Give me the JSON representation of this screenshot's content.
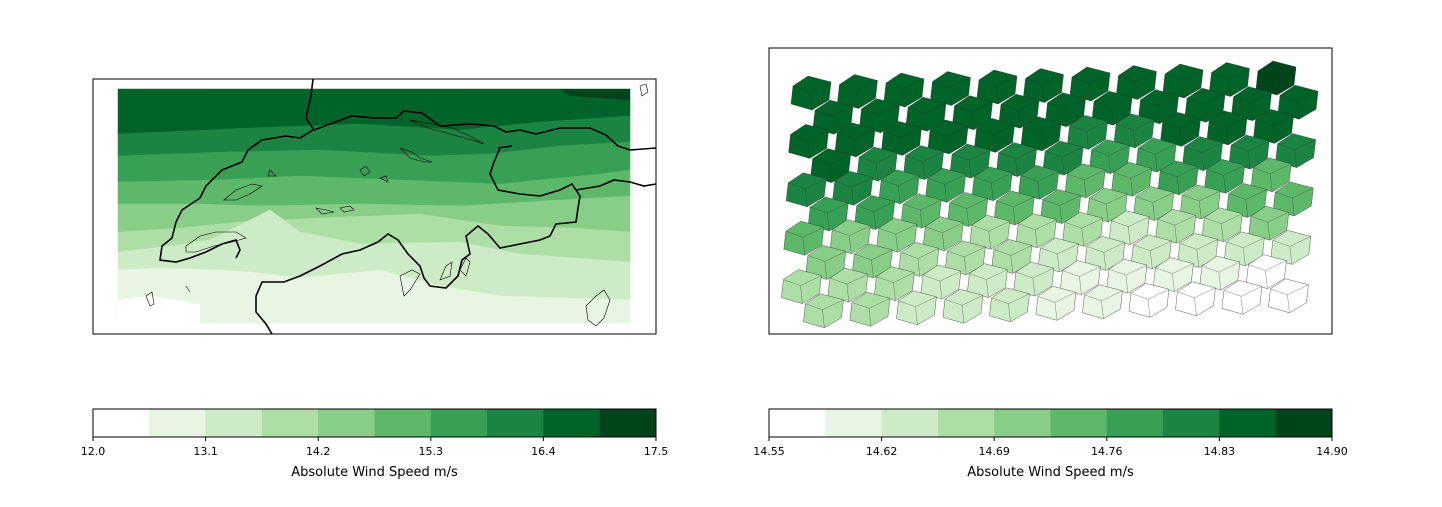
{
  "chart_data": [
    {
      "type": "heatmap",
      "title": "",
      "xlabel": "",
      "ylabel": "",
      "grid": false,
      "description_data": "banded wind speed field over a regional map with country outlines and lakes",
      "colorbar": {
        "label": "Absolute Wind Speed m/s",
        "min": 12.0,
        "max": 17.5,
        "levels": 10,
        "ticks": [
          "12.0",
          "13.1",
          "14.2",
          "15.3",
          "16.4",
          "17.5"
        ],
        "colors": [
          "#ffffff",
          "#e8f5e2",
          "#cdebc6",
          "#addea6",
          "#88cd88",
          "#5eb86a",
          "#37a055",
          "#1b8443",
          "#006328",
          "#00441b"
        ]
      },
      "bands_row_levels": [
        9,
        8,
        7,
        6,
        5,
        4,
        3,
        2,
        1
      ]
    },
    {
      "type": "heatmap",
      "title": "",
      "xlabel": "",
      "ylabel": "",
      "grid": false,
      "colorbar": {
        "label": "Absolute Wind Speed m/s",
        "min": 14.55,
        "max": 14.9,
        "levels": 10,
        "ticks": [
          "14.55",
          "14.62",
          "14.69",
          "14.76",
          "14.83",
          "14.90"
        ],
        "colors": [
          "#ffffff",
          "#e8f5e2",
          "#cdebc6",
          "#addea6",
          "#88cd88",
          "#5eb86a",
          "#37a055",
          "#1b8443",
          "#006328",
          "#00441b"
        ]
      },
      "hex_grid": {
        "rows": 10,
        "cols": 11,
        "levels": [
          [
            8,
            8,
            8,
            8,
            8,
            8,
            8,
            8,
            8,
            8,
            9
          ],
          [
            8,
            8,
            8,
            8,
            8,
            8,
            8,
            8,
            8,
            8,
            8
          ],
          [
            8,
            8,
            8,
            8,
            8,
            8,
            7,
            7,
            8,
            8,
            8
          ],
          [
            8,
            7,
            7,
            7,
            7,
            7,
            6,
            6,
            7,
            7,
            7
          ],
          [
            7,
            7,
            6,
            6,
            6,
            6,
            5,
            5,
            6,
            6,
            5
          ],
          [
            6,
            6,
            5,
            5,
            5,
            5,
            4,
            4,
            4,
            5,
            5
          ],
          [
            5,
            4,
            4,
            4,
            3,
            3,
            3,
            2,
            3,
            3,
            4
          ],
          [
            4,
            4,
            3,
            3,
            3,
            2,
            2,
            2,
            2,
            2,
            2
          ],
          [
            3,
            3,
            3,
            2,
            2,
            2,
            1,
            1,
            1,
            1,
            0
          ],
          [
            3,
            3,
            2,
            2,
            2,
            1,
            1,
            0,
            0,
            0,
            0
          ]
        ]
      }
    }
  ]
}
